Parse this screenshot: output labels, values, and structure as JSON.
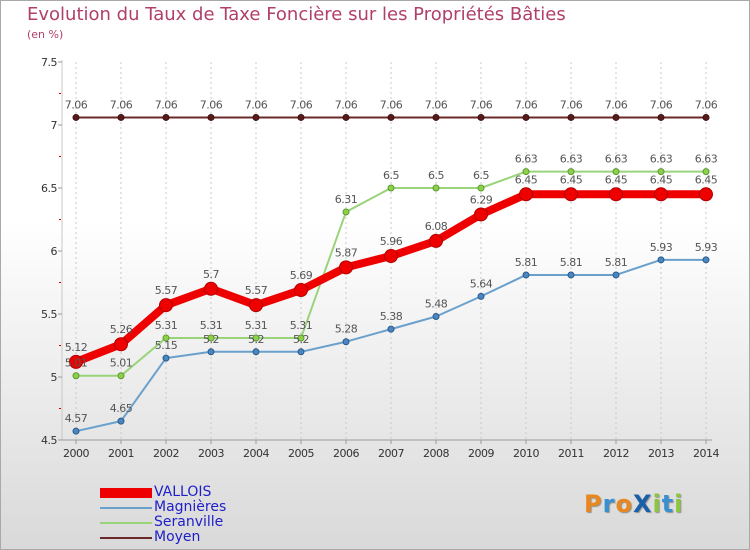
{
  "chart_data": {
    "type": "line",
    "title": "Evolution du Taux de Taxe Foncière sur les Propriétés Bâties",
    "subtitle": "(en %)",
    "ylim": [
      4.5,
      7.5
    ],
    "yticks": [
      "4.5",
      "5",
      "5.5",
      "6",
      "6.5",
      "7",
      "7.5"
    ],
    "ytick_values": [
      4.5,
      5,
      5.5,
      6,
      6.5,
      7,
      7.5
    ],
    "categories": [
      "2000",
      "2001",
      "2002",
      "2003",
      "2004",
      "2005",
      "2006",
      "2007",
      "2008",
      "2009",
      "2010",
      "2011",
      "2012",
      "2013",
      "2014"
    ],
    "series": [
      {
        "name": "Moyen",
        "color": "#6b2a2a",
        "values": [
          7.06,
          7.06,
          7.06,
          7.06,
          7.06,
          7.06,
          7.06,
          7.06,
          7.06,
          7.06,
          7.06,
          7.06,
          7.06,
          7.06,
          7.06
        ],
        "labels": [
          "7.06",
          "7.06",
          "7.06",
          "7.06",
          "7.06",
          "7.06",
          "7.06",
          "7.06",
          "7.06",
          "7.06",
          "7.06",
          "7.06",
          "7.06",
          "7.06",
          "7.06"
        ]
      },
      {
        "name": "Seranville",
        "color": "#9ad47a",
        "values": [
          5.01,
          5.01,
          5.31,
          5.31,
          5.31,
          5.31,
          6.31,
          6.5,
          6.5,
          6.5,
          6.63,
          6.63,
          6.63,
          6.63,
          6.63
        ],
        "labels": [
          "5.01",
          "5.01",
          "5.31",
          "5.31",
          "5.31",
          "5.31",
          "6.31",
          "6.5",
          "6.5",
          "6.5",
          "6.63",
          "6.63",
          "6.63",
          "6.63",
          "6.63"
        ]
      },
      {
        "name": "Magnières",
        "color": "#6aa0cc",
        "values": [
          4.57,
          4.65,
          5.15,
          5.2,
          5.2,
          5.2,
          5.28,
          5.38,
          5.48,
          5.64,
          5.81,
          5.81,
          5.81,
          5.93,
          5.93
        ],
        "labels": [
          "4.57",
          "4.65",
          "5.15",
          "5.2",
          "5.2",
          "5.2",
          "5.28",
          "5.38",
          "5.48",
          "5.64",
          "5.81",
          "5.81",
          "5.81",
          "5.93",
          "5.93"
        ]
      },
      {
        "name": "VALLOIS",
        "color": "#ee0000",
        "values": [
          5.12,
          5.26,
          5.57,
          5.7,
          5.57,
          5.69,
          5.87,
          5.96,
          6.08,
          6.29,
          6.45,
          6.45,
          6.45,
          6.45,
          6.45
        ],
        "labels": [
          "5.12",
          "5.26",
          "5.57",
          "5.7",
          "5.57",
          "5.69",
          "5.87",
          "5.96",
          "6.08",
          "6.29",
          "6.45",
          "6.45",
          "6.45",
          "6.45",
          "6.45"
        ]
      }
    ],
    "legend": [
      "VALLOIS",
      "Magnières",
      "Seranville",
      "Moyen"
    ],
    "grid": "vertical-dashed",
    "legend_position": "bottom-left"
  },
  "legend_items": [
    {
      "label": "VALLOIS",
      "color": "#ee0000"
    },
    {
      "label": "Magnières",
      "color": "#6aa0cc"
    },
    {
      "label": "Seranville",
      "color": "#9ad47a"
    },
    {
      "label": "Moyen",
      "color": "#6b2a2a"
    }
  ],
  "logo": {
    "text": "ProXiti",
    "letters": [
      "P",
      "r",
      "o",
      "X",
      "i",
      "t",
      "i"
    ],
    "colors": [
      "#e8871e",
      "#3a8fd0",
      "#e8871e",
      "#1a5fa8",
      "#8cc63f",
      "#3a8fd0",
      "#8cc63f"
    ]
  }
}
